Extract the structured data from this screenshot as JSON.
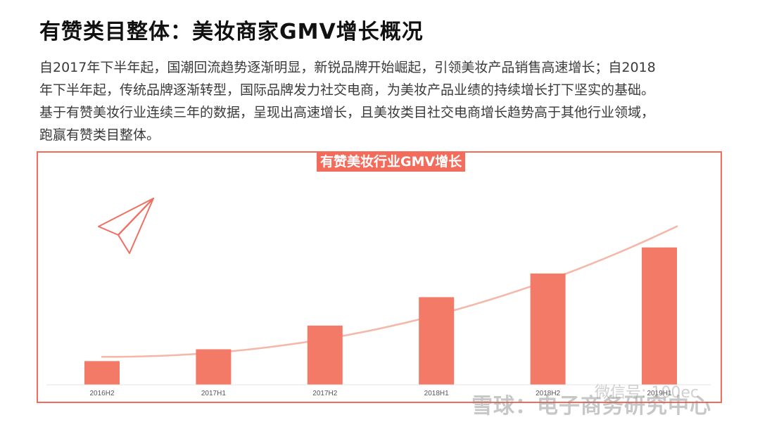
{
  "page": {
    "title": "有赞类目整体：美妆商家GMV增长概况",
    "paragraph_lines": [
      "自2017年下半年起，国潮回流趋势逐渐明显，新锐品牌开始崛起，引领美妆产品销售高速增长；自2018",
      "年下半年起，传统品牌逐渐转型，国际品牌发力社交电商，为美妆产品业绩的持续增长打下坚实的基础。",
      "基于有赞美妆行业连续三年的数据，呈现出高速增长，且美妆类目社交电商增长趋势高于其他行业领域，",
      "跑赢有赞类目整体。"
    ]
  },
  "chart_data": {
    "type": "bar",
    "title": "有赞美妆行业GMV增长",
    "categories": [
      "2016H2",
      "2017H1",
      "2017H2",
      "2018H1",
      "2018H2",
      "2019H1"
    ],
    "values": [
      10,
      15,
      25,
      37,
      47,
      58
    ],
    "ylim": [
      0,
      60
    ],
    "trendline": true,
    "grid": false,
    "colors": {
      "bar": "#f47a68",
      "trend": "#f4b7a8",
      "frame": "#f26b5b",
      "icon": "#ef6f60"
    },
    "icons": [
      "paper-plane-icon"
    ]
  },
  "watermark": {
    "text": "雪球：电子商务研究中心",
    "wechat": "微信号: 100ec"
  }
}
